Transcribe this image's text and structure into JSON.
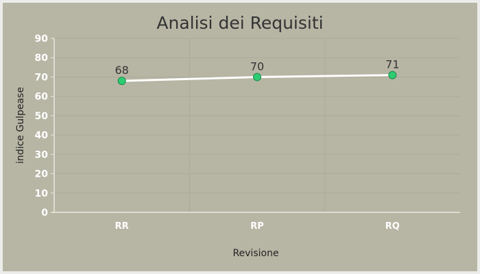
{
  "chart_data": {
    "type": "line",
    "title": "Analisi dei Requisiti",
    "xlabel": "Revisione",
    "ylabel": "indice Gulpease",
    "categories": [
      "RR",
      "RP",
      "RQ"
    ],
    "series": [
      {
        "values": [
          68,
          70,
          71
        ]
      }
    ],
    "ylim": [
      0,
      90
    ],
    "yticks": [
      "0",
      "10",
      "20",
      "30",
      "40",
      "50",
      "60",
      "70",
      "80",
      "90"
    ],
    "grid": true,
    "colors": {
      "background": "#b7b6a5",
      "line": "#ffffff",
      "marker": "#2ecc71",
      "marker_stroke": "#1a8a4a",
      "grid": "#acab9a"
    }
  }
}
